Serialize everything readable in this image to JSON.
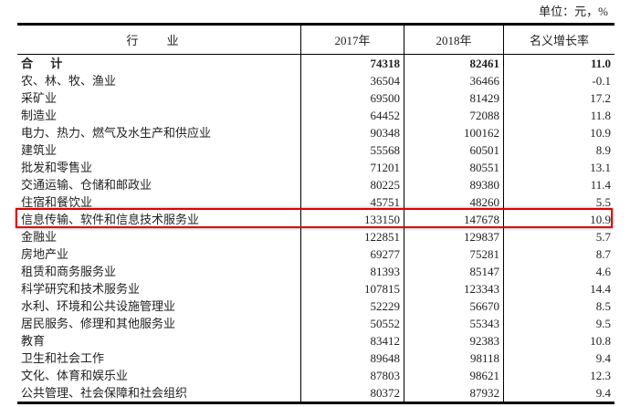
{
  "unit_label": "单位：元，%",
  "headers": [
    "行 业",
    "2017年",
    "2018年",
    "名义增长率"
  ],
  "rows": [
    [
      "合 计",
      "74318",
      "82461",
      "11.0"
    ],
    [
      "农、林、牧、渔业",
      "36504",
      "36466",
      "-0.1"
    ],
    [
      "采矿业",
      "69500",
      "81429",
      "17.2"
    ],
    [
      "制造业",
      "64452",
      "72088",
      "11.8"
    ],
    [
      "电力、热力、燃气及水生产和供应业",
      "90348",
      "100162",
      "10.9"
    ],
    [
      "建筑业",
      "55568",
      "60501",
      "8.9"
    ],
    [
      "批发和零售业",
      "71201",
      "80551",
      "13.1"
    ],
    [
      "交通运输、仓储和邮政业",
      "80225",
      "89380",
      "11.4"
    ],
    [
      "住宿和餐饮业",
      "45751",
      "48260",
      "5.5"
    ],
    [
      "信息传输、软件和信息技术服务业",
      "133150",
      "147678",
      "10.9"
    ],
    [
      "金融业",
      "122851",
      "129837",
      "5.7"
    ],
    [
      "房地产业",
      "69277",
      "75281",
      "8.7"
    ],
    [
      "租赁和商务服务业",
      "81393",
      "85147",
      "4.6"
    ],
    [
      "科学研究和技术服务业",
      "107815",
      "123343",
      "14.4"
    ],
    [
      "水利、环境和公共设施管理业",
      "52229",
      "56670",
      "8.5"
    ],
    [
      "居民服务、修理和其他服务业",
      "50552",
      "55343",
      "9.5"
    ],
    [
      "教育",
      "83412",
      "92383",
      "10.8"
    ],
    [
      "卫生和社会工作",
      "89648",
      "98118",
      "9.4"
    ],
    [
      "文化、体育和娱乐业",
      "87803",
      "98621",
      "12.3"
    ],
    [
      "公共管理、社会保障和社会组织",
      "80372",
      "87932",
      "9.4"
    ]
  ],
  "highlighted_row": 9,
  "highlight_color": "#e00000"
}
